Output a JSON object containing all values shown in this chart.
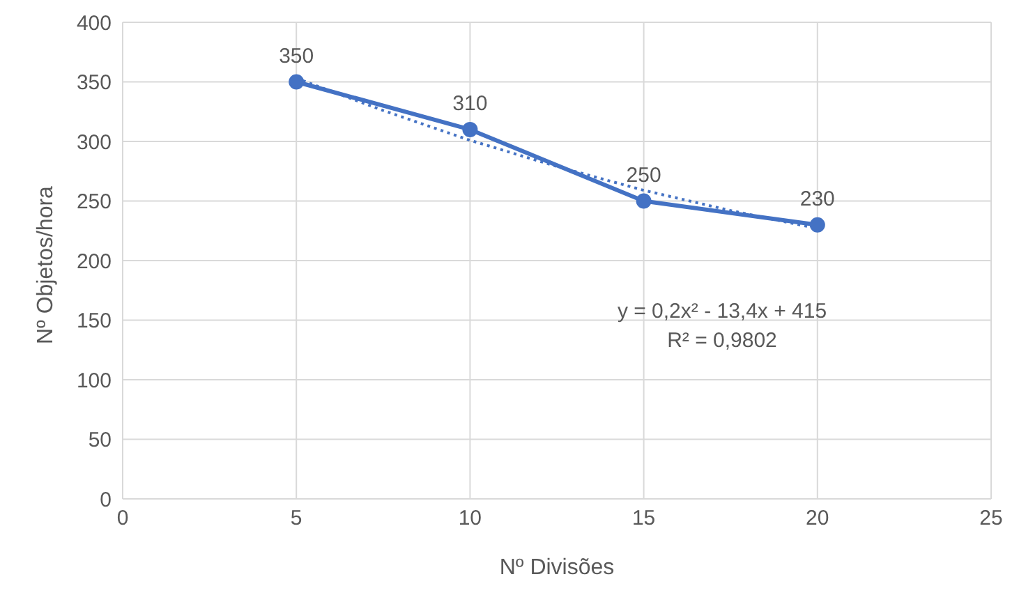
{
  "chart_data": {
    "type": "line",
    "xlabel": "Nº Divisões",
    "ylabel": "Nº Objetos/hora",
    "x": [
      5,
      10,
      15,
      20
    ],
    "series": [
      {
        "color": "#4472c4",
        "values": [
          350,
          310,
          250,
          230
        ],
        "value_labels": [
          "350",
          "310",
          "250",
          "230"
        ],
        "marker": "circle",
        "line_style": "solid"
      },
      {
        "type": "line",
        "color": "#4472c4",
        "x": [
          5,
          7.5,
          10,
          12.5,
          15,
          17.5,
          20
        ],
        "values": [
          353,
          326,
          301,
          279,
          259,
          242,
          227
        ],
        "marker": "none",
        "line_style": "dotted"
      }
    ],
    "xlim": [
      0,
      25
    ],
    "xticks": [
      0,
      5,
      10,
      15,
      20,
      25
    ],
    "ylim": [
      0,
      400
    ],
    "yticks": [
      0,
      50,
      100,
      150,
      200,
      250,
      300,
      350,
      400
    ],
    "grid": true,
    "annotations": [
      "y = 0,2x² - 13,4x + 415",
      "R² = 0,9802"
    ]
  }
}
